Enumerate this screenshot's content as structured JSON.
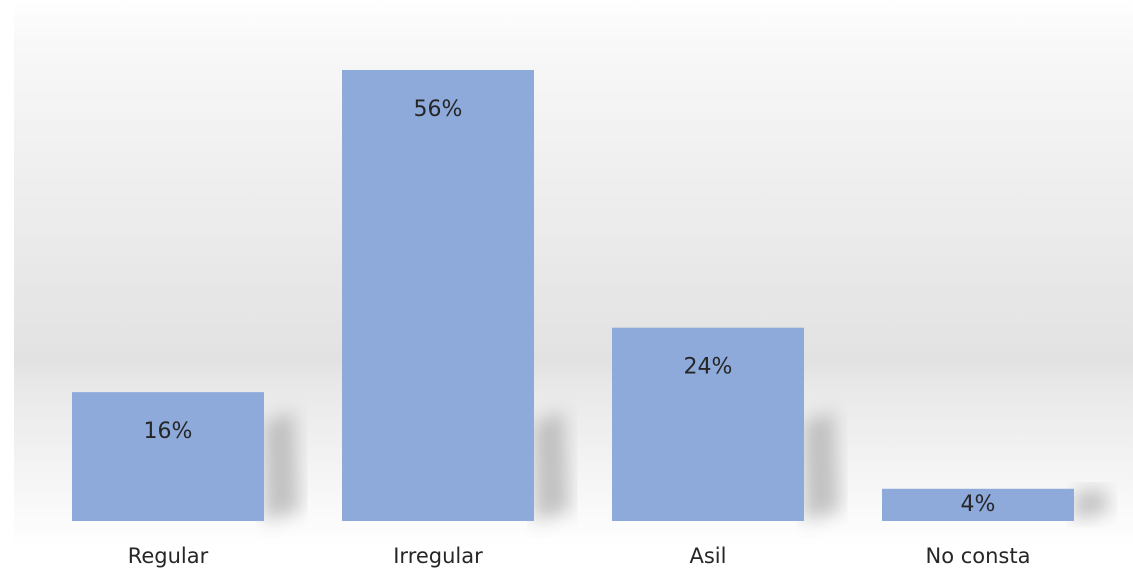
{
  "chart_data": {
    "type": "bar",
    "title": "",
    "xlabel": "",
    "ylabel": "",
    "categories": [
      "Regular",
      "Irregular",
      "Asil",
      "No consta"
    ],
    "values": [
      16,
      56,
      24,
      4
    ],
    "data_labels": [
      "16%",
      "56%",
      "24%",
      "4%"
    ],
    "unit": "%",
    "ylim": [
      0,
      60
    ],
    "grid": false,
    "legend": "none",
    "colors": {
      "bar": "#8eaadb",
      "text": "#262626",
      "background_top": "#f7f7f7",
      "background_mid": "#e4e4e4",
      "background_bottom": "#ffffff",
      "shadow": "#b0b0b0"
    }
  }
}
